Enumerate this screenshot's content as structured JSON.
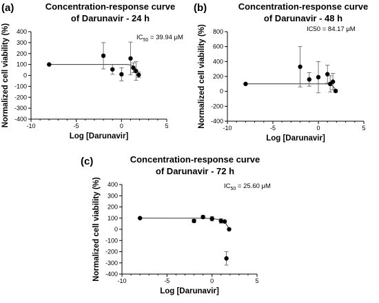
{
  "chart_data": [
    {
      "panel_label": "(a)",
      "type": "scatter",
      "title_line1": "Concentration-response curve",
      "title_line2": "of Darunavir - 24 h",
      "xlabel": "Log [Darunavir]",
      "ylabel": "Normalized cell viability (%)",
      "xlim": [
        -10,
        5
      ],
      "ylim": [
        -400,
        400
      ],
      "xticks": [
        -10,
        -5,
        0,
        5
      ],
      "yticks": [
        -400,
        -300,
        -200,
        -100,
        0,
        100,
        200,
        300,
        400
      ],
      "ic50_prefix": "IC",
      "ic50_sub": "50",
      "ic50_value": " = 39.94 μM",
      "grid": false,
      "points": [
        {
          "x": -8.0,
          "y": 100,
          "err": 0
        },
        {
          "x": -2.0,
          "y": 180,
          "err": 120
        },
        {
          "x": -1.0,
          "y": 55,
          "err": 45
        },
        {
          "x": 0.0,
          "y": 10,
          "err": 60
        },
        {
          "x": 1.0,
          "y": 155,
          "err": 150
        },
        {
          "x": 1.3,
          "y": 70,
          "err": 45
        },
        {
          "x": 1.6,
          "y": 40,
          "err": 85
        },
        {
          "x": 1.9,
          "y": 5,
          "err": 25
        }
      ],
      "fit": [
        [
          -8.0,
          100
        ],
        [
          0.5,
          100
        ],
        [
          1.0,
          97
        ],
        [
          1.3,
          85
        ],
        [
          1.6,
          55
        ],
        [
          1.9,
          20
        ]
      ]
    },
    {
      "panel_label": "(b)",
      "type": "scatter",
      "title_line1": "Concentration-response curve",
      "title_line2": "of Darunavir - 48 h",
      "xlabel": "Log [Darunavir]",
      "ylabel": "Normalized cell viability (%)",
      "xlim": [
        -10,
        5
      ],
      "ylim": [
        -400,
        800
      ],
      "xticks": [
        -10,
        -5,
        0,
        5
      ],
      "yticks": [
        -400,
        -200,
        0,
        200,
        400,
        600,
        800
      ],
      "ic50_prefix": "IC50",
      "ic50_sub": "",
      "ic50_value": " = 84.17 μM",
      "grid": false,
      "points": [
        {
          "x": -8.0,
          "y": 100,
          "err": 0
        },
        {
          "x": -2.0,
          "y": 330,
          "err": 270
        },
        {
          "x": -1.0,
          "y": 160,
          "err": 90
        },
        {
          "x": 0.0,
          "y": 190,
          "err": 210
        },
        {
          "x": 1.0,
          "y": 230,
          "err": 120
        },
        {
          "x": 1.3,
          "y": 100,
          "err": 110
        },
        {
          "x": 1.6,
          "y": 130,
          "err": 110
        },
        {
          "x": 1.9,
          "y": 5,
          "err": 20
        }
      ],
      "fit": [
        [
          -8.0,
          100
        ],
        [
          0.8,
          100
        ],
        [
          1.2,
          96
        ],
        [
          1.5,
          80
        ],
        [
          1.8,
          40
        ],
        [
          1.95,
          10
        ]
      ]
    },
    {
      "panel_label": "(c)",
      "type": "scatter",
      "title_line1": "Concentration-response curve",
      "title_line2": "of Darunavir - 72 h",
      "xlabel": "Log [Darunavir]",
      "ylabel": "Normalized cell viability (%)",
      "xlim": [
        -10,
        5
      ],
      "ylim": [
        -400,
        400
      ],
      "xticks": [
        -10,
        -5,
        0,
        5
      ],
      "yticks": [
        -400,
        -300,
        -200,
        -100,
        0,
        100,
        200,
        300,
        400
      ],
      "ic50_prefix": "IC",
      "ic50_sub": "50",
      "ic50_value": " = 25.60 μM",
      "grid": false,
      "points": [
        {
          "x": -8.0,
          "y": 100,
          "err": 0
        },
        {
          "x": -2.0,
          "y": 75,
          "err": 15
        },
        {
          "x": -1.0,
          "y": 110,
          "err": 15
        },
        {
          "x": 0.0,
          "y": 95,
          "err": 20
        },
        {
          "x": 1.0,
          "y": 75,
          "err": 20
        },
        {
          "x": 1.4,
          "y": 70,
          "err": 10
        },
        {
          "x": 1.6,
          "y": -260,
          "err": 60
        },
        {
          "x": 1.9,
          "y": 0,
          "err": 5
        }
      ],
      "fit": [
        [
          -8.0,
          100
        ],
        [
          -1.0,
          99
        ],
        [
          0.0,
          96
        ],
        [
          0.8,
          88
        ],
        [
          1.2,
          75
        ],
        [
          1.5,
          55
        ],
        [
          1.8,
          20
        ],
        [
          1.95,
          5
        ]
      ]
    }
  ]
}
